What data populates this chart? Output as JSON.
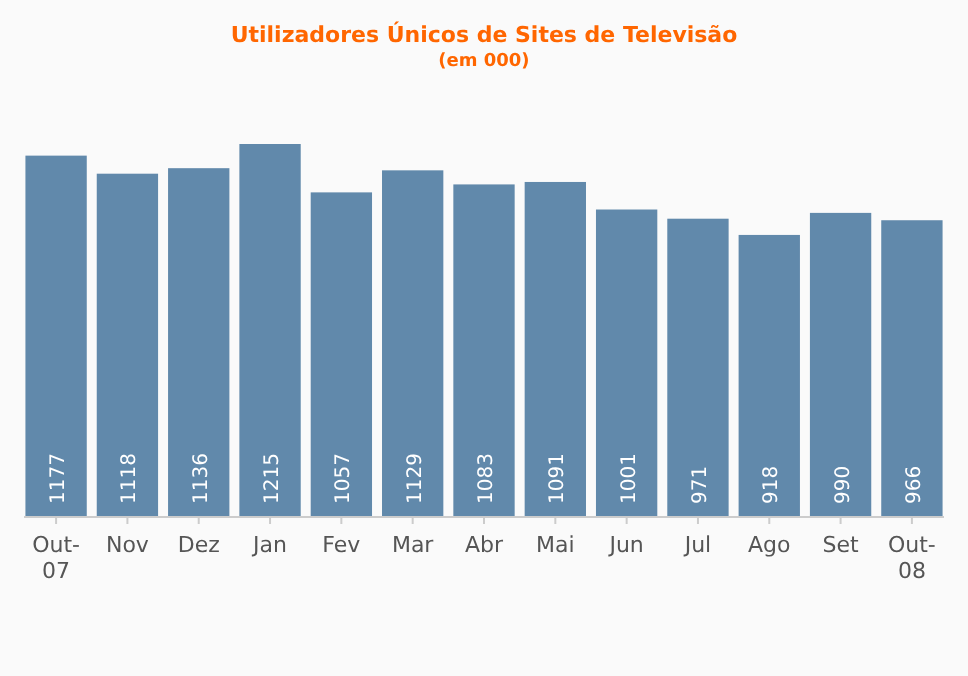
{
  "chart_data": {
    "type": "bar",
    "title": "Utilizadores Únicos de Sites de Televisão",
    "subtitle": "(em 000)",
    "categories": [
      "Out-07",
      "Nov",
      "Dez",
      "Jan",
      "Fev",
      "Mar",
      "Abr",
      "Mai",
      "Jun",
      "Jul",
      "Ago",
      "Set",
      "Out-08"
    ],
    "values": [
      1177,
      1118,
      1136,
      1215,
      1057,
      1129,
      1083,
      1091,
      1001,
      971,
      918,
      990,
      966
    ],
    "color": "#6189ab",
    "data_labels": true
  }
}
